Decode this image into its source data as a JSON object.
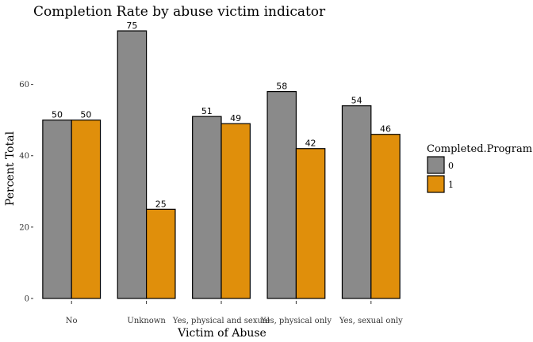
{
  "chart_data": {
    "type": "bar",
    "title": "Completion Rate by abuse victim indicator",
    "xlabel": "Victim of Abuse",
    "ylabel": "Percent Total",
    "categories": [
      "No",
      "Unknown",
      "Yes, physical and sexual",
      "Yes, physical only",
      "Yes, sexual only"
    ],
    "series": [
      {
        "name": "0",
        "values": [
          50,
          75,
          51,
          58,
          54
        ],
        "color": "#8a8a8a"
      },
      {
        "name": "1",
        "values": [
          50,
          25,
          49,
          42,
          46
        ],
        "color": "#e08f0b"
      }
    ],
    "ylim": [
      0,
      77
    ],
    "yticks": [
      0,
      20,
      40,
      60
    ],
    "grid": false,
    "legend": {
      "title": "Completed.Program",
      "position": "right"
    }
  }
}
